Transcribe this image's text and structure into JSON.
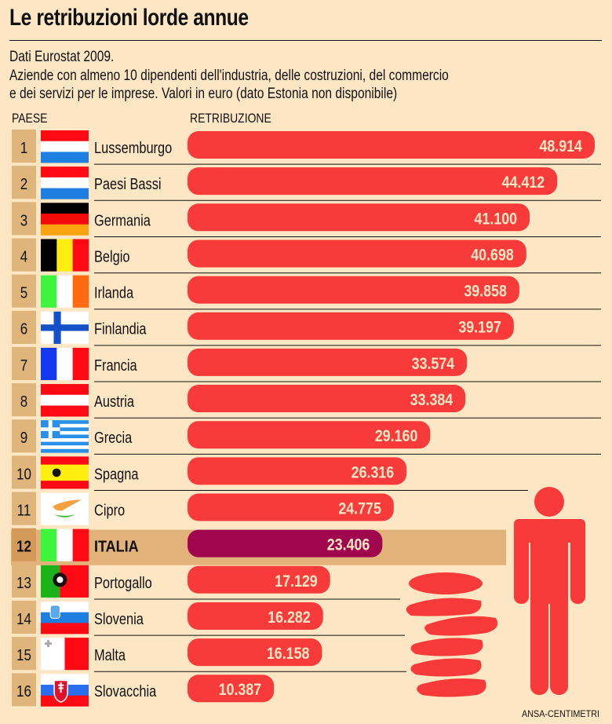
{
  "header": {
    "title": "Le retribuzioni lorde annue",
    "subtitle_lines": [
      "Dati Eurostat 2009.",
      "Aziende con almeno 10 dipendenti dell'industria, delle costruzioni, del commercio",
      "e dei servizi per le imprese. Valori in euro (dato Estonia non disponibile)"
    ],
    "col_country": "PAESE",
    "col_value": "RETRIBUZIONE"
  },
  "credit": "ANSA-CENTIMETRI",
  "colors": {
    "background": "#fde6c3",
    "bar": "#f93a3a",
    "bar_highlight": "#a0064e",
    "rank_cell": "#e0b57c",
    "highlight_row": "#e2b27a",
    "value_text": "#fde6c3",
    "icon": "#f93a3a"
  },
  "chart_data": {
    "type": "bar",
    "orientation": "horizontal",
    "title": "Le retribuzioni lorde annue",
    "xlabel": "RETRIBUZIONE",
    "ylabel": "PAESE",
    "unit": "euro",
    "highlight": "ITALIA",
    "categories": [
      "Lussemburgo",
      "Paesi Bassi",
      "Germania",
      "Belgio",
      "Irlanda",
      "Finlandia",
      "Francia",
      "Austria",
      "Grecia",
      "Spagna",
      "Cipro",
      "ITALIA",
      "Portogallo",
      "Slovenia",
      "Malta",
      "Slovacchia"
    ],
    "ranks": [
      1,
      2,
      3,
      4,
      5,
      6,
      7,
      8,
      9,
      10,
      11,
      12,
      13,
      14,
      15,
      16
    ],
    "values": [
      48914,
      44412,
      41100,
      40698,
      39858,
      39197,
      33574,
      33384,
      29160,
      26316,
      24775,
      23406,
      17129,
      16282,
      16158,
      10387
    ],
    "value_labels": [
      "48.914",
      "44.412",
      "41.100",
      "40.698",
      "39.858",
      "39.197",
      "33.574",
      "33.384",
      "29.160",
      "26.316",
      "24.775",
      "23.406",
      "17.129",
      "16.282",
      "16.158",
      "10.387"
    ],
    "flags": [
      "luxembourg",
      "netherlands",
      "germany",
      "belgium",
      "ireland",
      "finland",
      "france",
      "austria",
      "greece",
      "spain",
      "cyprus",
      "italy",
      "portugal",
      "slovenia",
      "malta",
      "slovakia"
    ],
    "xlim": [
      0,
      50000
    ]
  }
}
